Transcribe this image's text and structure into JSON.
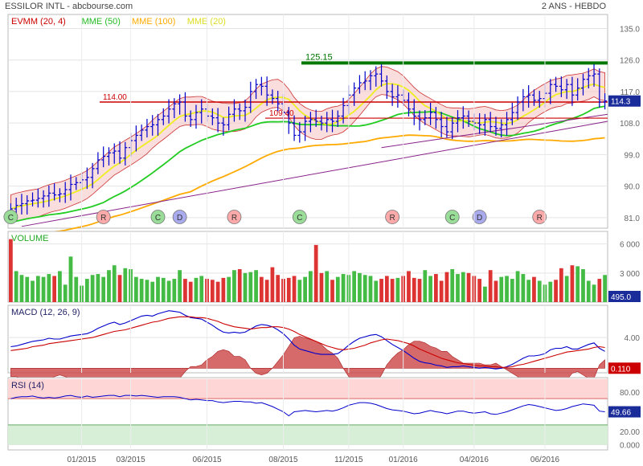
{
  "header": {
    "title": "ESSILOR INTL - abcbourse.com",
    "period": "2 ANS - HEBDO"
  },
  "chart_data": [
    {
      "name": "price",
      "type": "candlestick",
      "legend": [
        {
          "label": "EVMM (20, 4)",
          "color": "#cc0000"
        },
        {
          "label": "MME (50)",
          "color": "#22bb22"
        },
        {
          "label": "MME (100)",
          "color": "#ffaa00"
        },
        {
          "label": "MME (20)",
          "color": "#dddd22"
        }
      ],
      "ylim": [
        78,
        139
      ],
      "yticks": [
        "135.0",
        "126.0",
        "117.0",
        "108.0",
        "99.0",
        "90.0",
        "81.0"
      ],
      "last_price": "114.3",
      "levels": [
        {
          "label": "125.15",
          "value": 125.15,
          "color": "#007700"
        },
        {
          "label": "114.00",
          "value": 114.0,
          "color": "#cc0000"
        },
        {
          "label": "109.40",
          "value": 109.4,
          "color": "#cc0000"
        }
      ],
      "close": [
        83.5,
        84.5,
        85.0,
        85.8,
        86.0,
        86.5,
        87.2,
        88.0,
        87.5,
        87.8,
        89.0,
        90.5,
        91.0,
        91.8,
        92.5,
        95.0,
        97.5,
        98.5,
        99.5,
        100.0,
        98.0,
        101.0,
        103.0,
        104.5,
        106.0,
        107.0,
        107.5,
        109.0,
        110.0,
        112.0,
        113.5,
        114.0,
        110.0,
        109.0,
        111.0,
        112.0,
        110.0,
        109.5,
        108.0,
        107.5,
        110.5,
        112.0,
        111.5,
        112.5,
        117.0,
        119.0,
        118.5,
        116.0,
        115.0,
        113.5,
        111.0,
        108.0,
        104.5,
        105.5,
        108.5,
        109.0,
        108.5,
        108.0,
        109.0,
        108.5,
        110.0,
        113.0,
        116.0,
        118.0,
        119.5,
        120.0,
        121.5,
        122.0,
        120.0,
        117.0,
        115.5,
        116.0,
        114.5,
        112.0,
        110.0,
        109.0,
        109.5,
        111.0,
        109.0,
        107.0,
        105.5,
        108.0,
        109.5,
        110.0,
        108.5,
        108.0,
        107.5,
        109.0,
        107.0,
        106.5,
        107.5,
        109.0,
        111.0,
        114.0,
        115.5,
        116.0,
        114.5,
        115.0,
        116.5,
        119.0,
        118.5,
        117.5,
        119.0,
        116.0,
        118.0,
        120.5,
        121.5,
        122.0,
        114.0,
        114.3
      ],
      "markers": [
        {
          "label": "C",
          "index": 0,
          "color": "#99dd99"
        },
        {
          "label": "R",
          "index": 17,
          "color": "#ffaaaa"
        },
        {
          "label": "C",
          "index": 27,
          "color": "#99dd99"
        },
        {
          "label": "D",
          "index": 31,
          "color": "#aaaaee"
        },
        {
          "label": "R",
          "index": 41,
          "color": "#ffaaaa"
        },
        {
          "label": "C",
          "index": 53,
          "color": "#99dd99"
        },
        {
          "label": "R",
          "index": 70,
          "color": "#ffaaaa"
        },
        {
          "label": "C",
          "index": 81,
          "color": "#99dd99"
        },
        {
          "label": "D",
          "index": 86,
          "color": "#aaaaee"
        },
        {
          "label": "R",
          "index": 97,
          "color": "#ffaaaa"
        }
      ]
    },
    {
      "name": "volume",
      "type": "bar",
      "title": "VOLUME",
      "ylim": [
        0,
        7300
      ],
      "yticks": [
        "6 000",
        "3 000"
      ],
      "last_value": "495.0",
      "values": [
        6500,
        3200,
        2800,
        2600,
        2200,
        2700,
        2600,
        2900,
        2700,
        3200,
        1800,
        4700,
        2600,
        1700,
        2400,
        2800,
        2900,
        2600,
        3300,
        3800,
        2800,
        3500,
        3400,
        2600,
        2400,
        2300,
        2100,
        2600,
        2500,
        2200,
        2400,
        3300,
        2400,
        2100,
        2500,
        2700,
        2400,
        2300,
        2100,
        2500,
        2600,
        3300,
        3400,
        3000,
        3100,
        3300,
        2600,
        2300,
        3600,
        2800,
        2400,
        2500,
        2700,
        2300,
        2600,
        3200,
        5900,
        3000,
        3200,
        2300,
        2600,
        2900,
        2800,
        3200,
        3000,
        2800,
        2700,
        2200,
        2400,
        2700,
        2400,
        2500,
        2700,
        3200,
        2500,
        2400,
        3300,
        2700,
        2900,
        2200,
        3100,
        3400,
        2900,
        3100,
        3000,
        2700,
        2400,
        1600,
        3300,
        2200,
        2600,
        2700,
        2400,
        3200,
        2900,
        2300,
        2600,
        2200,
        1800,
        2100,
        2300,
        3500,
        2700,
        3800,
        3700,
        3400,
        2200,
        1800,
        2400,
        2800,
        495
      ],
      "colors": "green-up-red-down"
    },
    {
      "name": "macd",
      "type": "line",
      "title": "MACD (12, 26, 9)",
      "ylim": [
        -0.6,
        8.2
      ],
      "yticks": [
        "4.00"
      ],
      "last_value": "0.110",
      "series": [
        {
          "values": [
            2.8,
            2.9,
            3.1,
            3.3,
            3.5,
            3.6,
            3.7,
            3.9,
            3.8,
            3.8,
            4.0,
            4.2,
            4.3,
            4.4,
            4.5,
            4.8,
            5.2,
            5.5,
            5.8,
            6.0,
            5.7,
            5.9,
            6.2,
            6.5,
            6.8,
            6.9,
            6.8,
            7.1,
            7.3,
            7.5,
            7.4,
            7.3,
            6.9,
            6.6,
            6.5,
            6.4,
            6.0,
            5.6,
            5.1,
            4.7,
            4.6,
            4.7,
            4.6,
            4.7,
            5.1,
            5.5,
            5.7,
            5.6,
            5.4,
            5.0,
            4.5,
            3.8,
            3.0,
            2.5,
            2.3,
            2.1,
            1.9,
            1.8,
            1.8,
            1.8,
            1.9,
            2.4,
            3.0,
            3.5,
            3.9,
            4.1,
            4.3,
            4.4,
            4.1,
            3.6,
            3.1,
            2.7,
            2.3,
            1.8,
            1.3,
            0.9,
            0.7,
            0.6,
            0.4,
            0.3,
            0.1,
            0.2,
            0.2,
            0.3,
            0.2,
            0.1,
            0.0,
            0.1,
            0.0,
            -0.1,
            0.0,
            0.2,
            0.5,
            0.9,
            1.3,
            1.6,
            1.6,
            1.7,
            1.9,
            2.4,
            2.6,
            2.6,
            2.8,
            2.5,
            2.5,
            2.8,
            3.1,
            3.3,
            2.6,
            2.2
          ],
          "color": "#0000cc"
        },
        {
          "values": [
            2.3,
            2.4,
            2.5,
            2.6,
            2.8,
            2.9,
            3.0,
            3.2,
            3.3,
            3.4,
            3.5,
            3.6,
            3.7,
            3.8,
            3.9,
            4.0,
            4.2,
            4.4,
            4.6,
            4.8,
            4.9,
            5.0,
            5.2,
            5.4,
            5.6,
            5.8,
            6.0,
            6.1,
            6.3,
            6.5,
            6.6,
            6.7,
            6.7,
            6.7,
            6.6,
            6.6,
            6.5,
            6.3,
            6.1,
            5.8,
            5.6,
            5.4,
            5.3,
            5.2,
            5.1,
            5.2,
            5.3,
            5.3,
            5.4,
            5.4,
            5.3,
            5.1,
            4.8,
            4.4,
            4.1,
            3.8,
            3.5,
            3.2,
            2.9,
            2.7,
            2.5,
            2.4,
            2.5,
            2.6,
            2.8,
            3.0,
            3.3,
            3.5,
            3.7,
            3.8,
            3.7,
            3.6,
            3.4,
            3.2,
            2.9,
            2.5,
            2.2,
            1.9,
            1.6,
            1.3,
            1.1,
            0.9,
            0.7,
            0.6,
            0.5,
            0.4,
            0.3,
            0.3,
            0.2,
            0.2,
            0.1,
            0.1,
            0.2,
            0.4,
            0.5,
            0.7,
            0.9,
            1.1,
            1.3,
            1.5,
            1.7,
            1.9,
            2.1,
            2.2,
            2.3,
            2.4,
            2.5,
            2.7,
            2.8,
            2.7
          ],
          "color": "#cc0000"
        }
      ],
      "histogram_color": "#cc4444"
    },
    {
      "name": "rsi",
      "type": "line",
      "title": "RSI (14)",
      "ylim": [
        -8,
        102
      ],
      "yticks": [
        "80.00",
        "20.00",
        "0.000"
      ],
      "last_value": "49.66",
      "zones": [
        {
          "from": 70,
          "to": 100,
          "color": "#ffd6d6"
        },
        {
          "from": 0,
          "to": 30,
          "color": "#d6efd6"
        }
      ],
      "values": [
        70,
        72,
        73,
        73,
        74,
        72,
        71,
        72,
        71,
        72,
        74,
        75,
        73,
        72,
        74,
        72,
        73,
        74,
        75,
        75,
        73,
        75,
        75,
        74,
        75,
        74,
        73,
        72,
        73,
        73,
        73,
        72,
        70,
        68,
        69,
        68,
        67,
        67,
        65,
        64,
        65,
        66,
        66,
        65,
        65,
        63,
        64,
        61,
        58,
        54,
        50,
        44,
        50,
        51,
        52,
        51,
        50,
        51,
        52,
        51,
        53,
        56,
        60,
        62,
        64,
        64,
        63,
        61,
        58,
        55,
        53,
        52,
        51,
        49,
        47,
        48,
        50,
        52,
        50,
        49,
        47,
        49,
        51,
        51,
        49,
        48,
        49,
        50,
        47,
        46,
        48,
        50,
        53,
        56,
        59,
        61,
        60,
        58,
        56,
        54,
        52,
        53,
        55,
        58,
        60,
        62,
        61,
        60,
        51,
        50
      ],
      "color": "#0000cc"
    }
  ],
  "x_axis": {
    "labels": [
      {
        "label": "01/2015",
        "index": 13
      },
      {
        "label": "03/2015",
        "index": 22
      },
      {
        "label": "06/2015",
        "index": 36
      },
      {
        "label": "08/2015",
        "index": 50
      },
      {
        "label": "11/2015",
        "index": 62
      },
      {
        "label": "01/2016",
        "index": 72
      },
      {
        "label": "04/2016",
        "index": 85
      },
      {
        "label": "06/2016",
        "index": 98
      }
    ]
  }
}
